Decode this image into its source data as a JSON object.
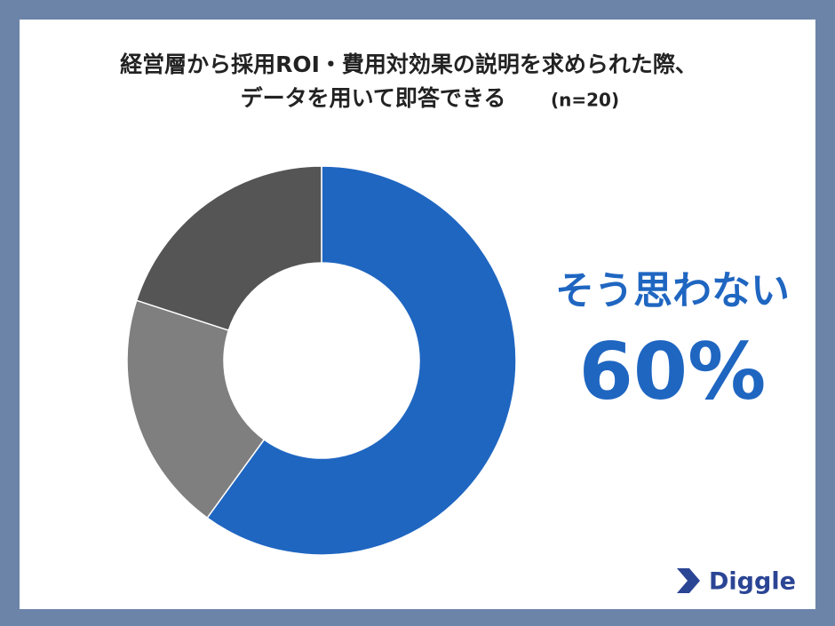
{
  "chart_data": {
    "type": "donut",
    "title": [
      "経営層から採用ROI・費用対効果の説明を求められた際、",
      "データを用いて即答できる"
    ],
    "subtitle": "(n=20)",
    "categories": [
      "そう思わない",
      null,
      null
    ],
    "values": [
      60,
      20,
      20
    ],
    "value_labels": [
      "60%",
      null,
      null
    ],
    "colors": [
      "#1f66c1",
      "#7f7f7f",
      "#555555"
    ]
  },
  "logo": "Diggle"
}
